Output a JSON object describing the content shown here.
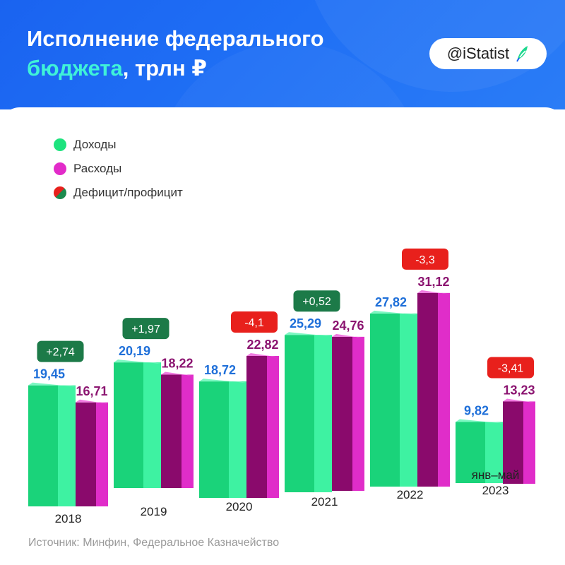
{
  "header": {
    "title_line1": "Исполнение федерального",
    "title_accent": "бюджета",
    "title_rest": ", трлн ₽",
    "brand_text": "@iStatist",
    "brand_icon": "feather-icon"
  },
  "legend": [
    {
      "label": "Доходы",
      "color": "#1ee37e"
    },
    {
      "label": "Расходы",
      "color": "#e22bc9"
    },
    {
      "label": "Дефицит/профицит",
      "color_a": "#e8201c",
      "color_b": "#1c8a4e"
    }
  ],
  "source": "Источник: Минфин, Федеральное Казначейство",
  "colors": {
    "income_front": "#1ad37a",
    "income_side": "#3ef2a2",
    "income_top": "#7df7c2",
    "expense_front": "#8a0a6c",
    "expense_side": "#e02dc9",
    "expense_top": "#f07be0",
    "income_label": "#1e6fd9",
    "expense_label": "#8b1470",
    "deficit_badge": "#e8201c",
    "surplus_badge": "#1c7a48"
  },
  "chart_data": {
    "type": "bar",
    "title": "Исполнение федерального бюджета, трлн ₽",
    "categories": [
      {
        "lines": [
          "2018"
        ]
      },
      {
        "lines": [
          "2019"
        ]
      },
      {
        "lines": [
          "2020"
        ]
      },
      {
        "lines": [
          "2021"
        ]
      },
      {
        "lines": [
          "2022"
        ]
      },
      {
        "lines": [
          "янв–май",
          "2023"
        ]
      }
    ],
    "series": [
      {
        "name": "Доходы",
        "values": [
          19.45,
          20.19,
          18.72,
          25.29,
          27.82,
          9.82
        ],
        "labels": [
          "19,45",
          "20,19",
          "18,72",
          "25,29",
          "27,82",
          "9,82"
        ]
      },
      {
        "name": "Расходы",
        "values": [
          16.71,
          18.22,
          22.82,
          24.76,
          31.12,
          13.23
        ],
        "labels": [
          "16,71",
          "18,22",
          "22,82",
          "24,76",
          "31,12",
          "13,23"
        ]
      }
    ],
    "balance": {
      "name": "Дефицит/профицит",
      "values": [
        2.74,
        1.97,
        -4.1,
        0.52,
        -3.3,
        -3.41
      ],
      "labels": [
        "+2,74",
        "+1,97",
        "-4,1",
        "+0,52",
        "-3,3",
        "-3,41"
      ]
    }
  }
}
